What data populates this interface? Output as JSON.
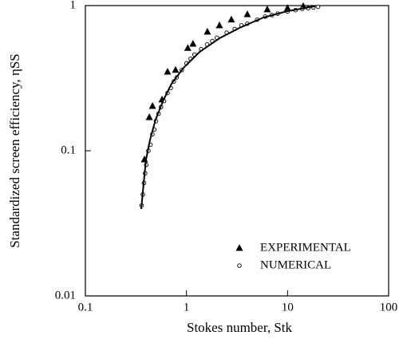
{
  "chart_data": {
    "type": "scatter",
    "xlabel": "Stokes number, Stk",
    "ylabel": "Standardized screen efficiency, ηSS",
    "xscale": "log",
    "yscale": "log",
    "xlim": [
      0.1,
      100
    ],
    "ylim": [
      0.01,
      1
    ],
    "xticks": [
      0.1,
      1,
      10,
      100
    ],
    "yticks": [
      0.01,
      0.1,
      1
    ],
    "legend": "lower right",
    "series": [
      {
        "name": "EXPERIMENTAL",
        "marker": "triangle",
        "color": "#000000",
        "x": [
          0.384,
          0.429,
          0.461,
          0.573,
          0.65,
          0.78,
          1.03,
          1.16,
          1.61,
          2.12,
          2.78,
          4.0,
          6.3,
          10,
          14.3
        ],
        "values": [
          0.087,
          0.17,
          0.203,
          0.225,
          0.35,
          0.36,
          0.51,
          0.545,
          0.66,
          0.73,
          0.8,
          0.87,
          0.94,
          0.96,
          0.99
        ]
      },
      {
        "name": "NUMERICAL",
        "marker": "circle",
        "color": "#000000",
        "x": [
          0.36,
          0.37,
          0.38,
          0.39,
          0.4,
          0.42,
          0.44,
          0.46,
          0.48,
          0.5,
          0.53,
          0.56,
          0.6,
          0.65,
          0.7,
          0.75,
          0.8,
          0.9,
          1.0,
          1.1,
          1.2,
          1.4,
          1.6,
          1.8,
          2.0,
          2.5,
          3,
          3.5,
          4,
          5,
          6,
          7,
          8,
          10,
          12,
          14,
          16,
          18,
          20
        ],
        "values": [
          0.042,
          0.05,
          0.06,
          0.07,
          0.08,
          0.1,
          0.11,
          0.13,
          0.14,
          0.16,
          0.18,
          0.2,
          0.22,
          0.25,
          0.27,
          0.3,
          0.32,
          0.36,
          0.4,
          0.43,
          0.46,
          0.5,
          0.54,
          0.57,
          0.6,
          0.65,
          0.69,
          0.73,
          0.75,
          0.8,
          0.84,
          0.86,
          0.88,
          0.91,
          0.93,
          0.95,
          0.96,
          0.97,
          0.98
        ]
      },
      {
        "marker": "line",
        "color": "#000000",
        "x": [
          0.357,
          0.377,
          0.398,
          0.436,
          0.495,
          0.594,
          0.713,
          0.936,
          1.35,
          2.12,
          3.34,
          5.76,
          9.93,
          18.8
        ],
        "values": [
          0.0397,
          0.0595,
          0.087,
          0.119,
          0.164,
          0.225,
          0.29,
          0.373,
          0.48,
          0.595,
          0.702,
          0.827,
          0.915,
          0.99
        ]
      }
    ]
  }
}
